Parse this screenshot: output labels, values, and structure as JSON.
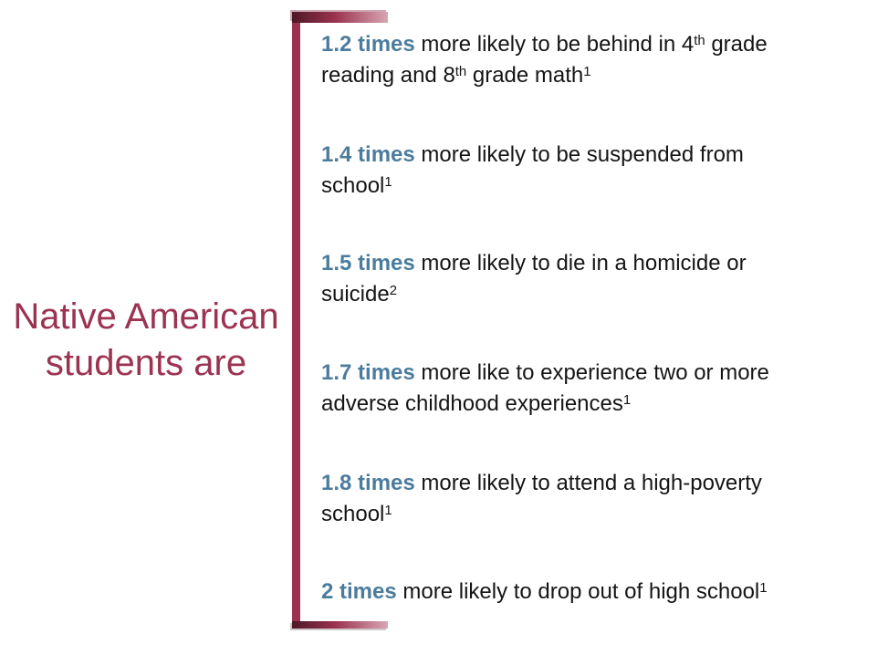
{
  "slide": {
    "background": "#ffffff",
    "left_label": {
      "line1": "Native American",
      "line2": "students are",
      "color": "#9b3351"
    },
    "bracket": {
      "bar_color": "#9a3350",
      "gradient_dark": "#4e1826",
      "gradient_light": "#d9a6b3"
    },
    "stat_color": "#4b7c9d",
    "body_color": "#151515"
  },
  "items": [
    {
      "stat": "1.2 times",
      "parts": [
        {
          "text": " more likely to be behind in 4"
        },
        {
          "text": "th",
          "sup": true
        },
        {
          "text": " grade"
        },
        {
          "br": true
        },
        {
          "text": "reading and 8"
        },
        {
          "text": "th",
          "sup": true
        },
        {
          "text": " grade math"
        },
        {
          "text": "1",
          "sup": true
        }
      ]
    },
    {
      "stat": "1.4 times",
      "parts": [
        {
          "text": " more likely to be suspended from"
        },
        {
          "br": true
        },
        {
          "text": "school"
        },
        {
          "text": "1",
          "sup": true
        }
      ]
    },
    {
      "stat": "1.5 times",
      "parts": [
        {
          "text": " more likely to die in a homicide or"
        },
        {
          "br": true
        },
        {
          "text": "suicide"
        },
        {
          "text": "2",
          "sup": true
        }
      ]
    },
    {
      "stat": "1.7 times",
      "parts": [
        {
          "text": " more like to experience two or more"
        },
        {
          "br": true
        },
        {
          "text": "adverse childhood experiences"
        },
        {
          "text": "1",
          "sup": true
        }
      ]
    },
    {
      "stat": "1.8 times",
      "parts": [
        {
          "text": " more likely to attend a high-poverty"
        },
        {
          "br": true
        },
        {
          "text": "school"
        },
        {
          "text": "1",
          "sup": true
        }
      ]
    },
    {
      "stat": "2 times",
      "parts": [
        {
          "text": " more likely to drop out of high school"
        },
        {
          "text": "1",
          "sup": true
        }
      ]
    }
  ]
}
